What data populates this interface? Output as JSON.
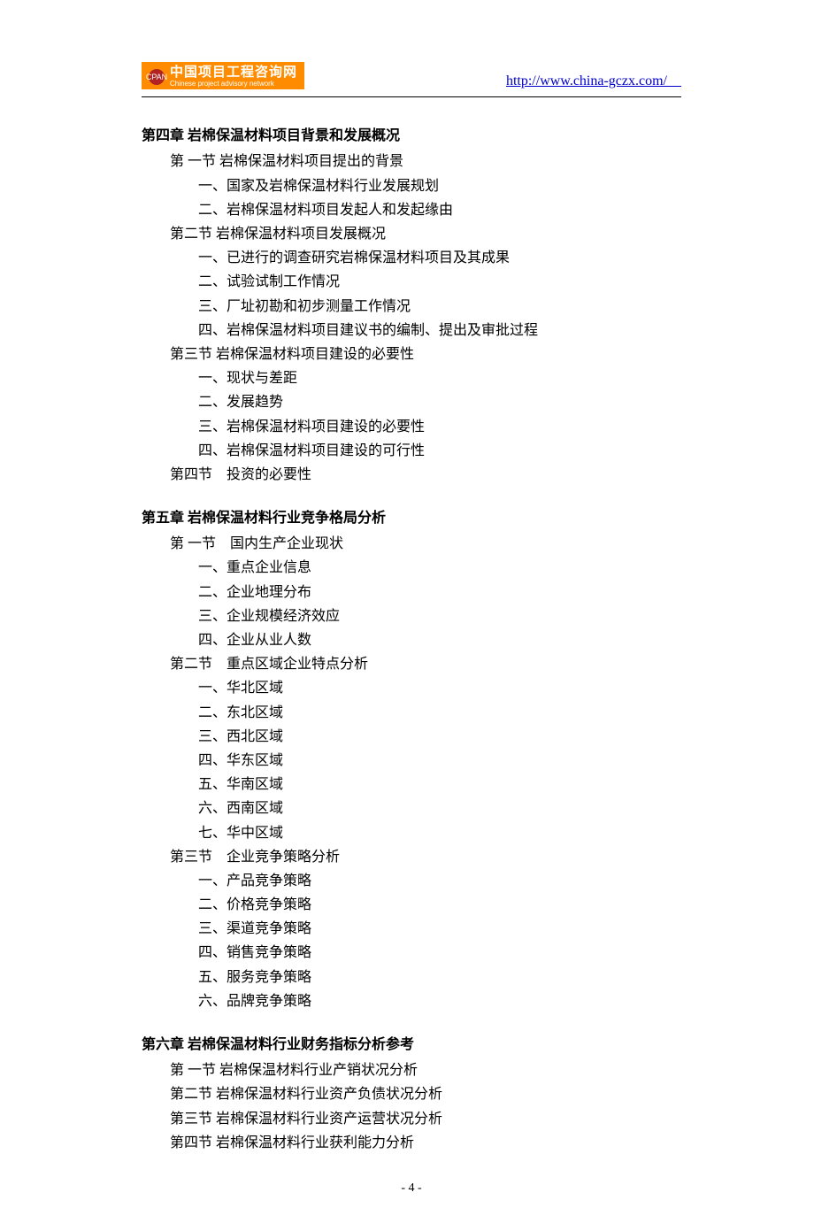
{
  "header": {
    "logo_cn": "中国项目工程咨询网",
    "logo_en": "Chinese project advisory network",
    "logo_icon_text": "CPAN",
    "url": "http://www.china-gczx.com/    "
  },
  "colors": {
    "logo_bg": "#ff8c00",
    "logo_icon_bg": "#b22222",
    "link": "#0000cc",
    "text": "#000000",
    "rule": "#000000"
  },
  "chapters": [
    {
      "title": "第四章  岩棉保温材料项目背景和发展概况",
      "sections": [
        {
          "title": "第 一节  岩棉保温材料项目提出的背景",
          "items": [
            "一、国家及岩棉保温材料行业发展规划",
            "二、岩棉保温材料项目发起人和发起缘由"
          ]
        },
        {
          "title": "第二节  岩棉保温材料项目发展概况",
          "items": [
            "一、已进行的调查研究岩棉保温材料项目及其成果",
            "二、试验试制工作情况",
            "三、厂址初勘和初步测量工作情况",
            "四、岩棉保温材料项目建议书的编制、提出及审批过程"
          ]
        },
        {
          "title": "第三节  岩棉保温材料项目建设的必要性",
          "items": [
            "一、现状与差距",
            "二、发展趋势",
            "三、岩棉保温材料项目建设的必要性",
            "四、岩棉保温材料项目建设的可行性"
          ]
        },
        {
          "title": "第四节　投资的必要性",
          "items": []
        }
      ]
    },
    {
      "title": "第五章  岩棉保温材料行业竞争格局分析",
      "sections": [
        {
          "title": "第 一节　国内生产企业现状",
          "items": [
            "一、重点企业信息",
            "二、企业地理分布",
            "三、企业规模经济效应",
            "四、企业从业人数"
          ]
        },
        {
          "title": "第二节　重点区域企业特点分析",
          "items": [
            "一、华北区域",
            "二、东北区域",
            "三、西北区域",
            "四、华东区域",
            "五、华南区域",
            "六、西南区域",
            "七、华中区域"
          ]
        },
        {
          "title": "第三节　企业竞争策略分析",
          "items": [
            "一、产品竞争策略",
            "二、价格竞争策略",
            "三、渠道竞争策略",
            "四、销售竞争策略",
            "五、服务竞争策略",
            "六、品牌竞争策略"
          ]
        }
      ]
    },
    {
      "title": "第六章  岩棉保温材料行业财务指标分析参考",
      "sections": [
        {
          "title": "第 一节  岩棉保温材料行业产销状况分析",
          "items": []
        },
        {
          "title": "第二节  岩棉保温材料行业资产负债状况分析",
          "items": []
        },
        {
          "title": "第三节  岩棉保温材料行业资产运营状况分析",
          "items": []
        },
        {
          "title": "第四节  岩棉保温材料行业获利能力分析",
          "items": []
        }
      ]
    }
  ],
  "footer": {
    "page_number": "- 4 -"
  }
}
